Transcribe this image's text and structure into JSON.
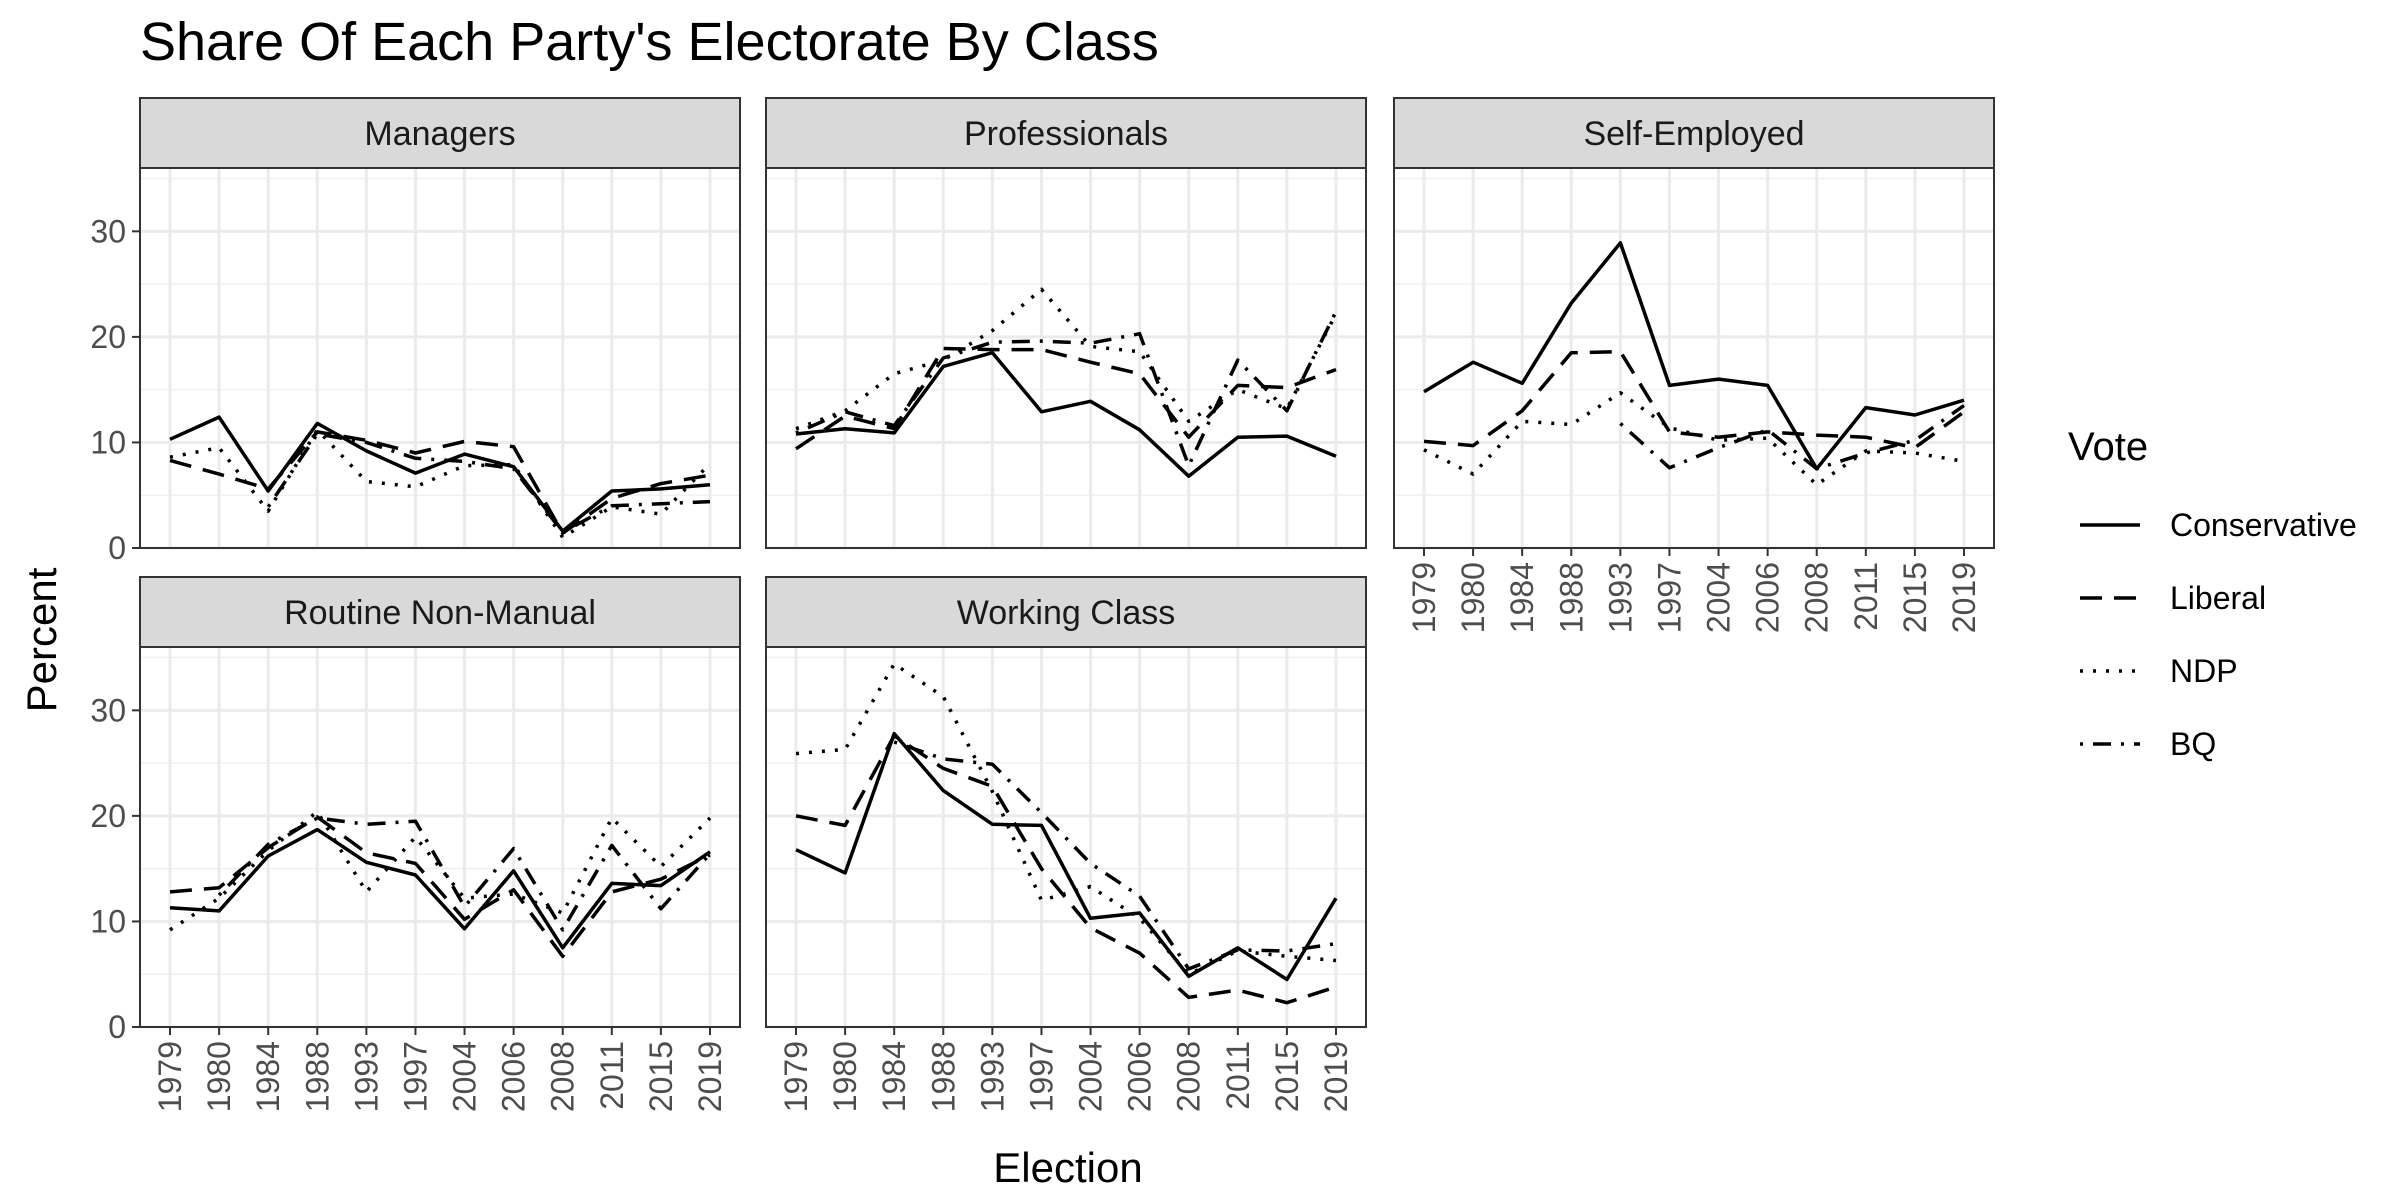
{
  "chart_data": {
    "type": "line",
    "title": "Share Of Each Party's Electorate By Class",
    "xlabel": "Election",
    "ylabel": "Percent",
    "ylim": [
      0,
      36
    ],
    "yticks": [
      0,
      10,
      20,
      30
    ],
    "grid": true,
    "legend_position": "right",
    "legend_title": "Vote",
    "x": [
      "1979",
      "1980",
      "1984",
      "1988",
      "1993",
      "1997",
      "2004",
      "2006",
      "2008",
      "2011",
      "2015",
      "2019"
    ],
    "series_styles": [
      {
        "name": "Conservative",
        "dash": "solid"
      },
      {
        "name": "Liberal",
        "dash": "dashed"
      },
      {
        "name": "NDP",
        "dash": "dotted"
      },
      {
        "name": "BQ",
        "dash": "dotdash"
      }
    ],
    "panels": [
      {
        "strip": "Managers",
        "series": [
          {
            "name": "Conservative",
            "values": [
              10.3,
              12.4,
              5.4,
              11.8,
              9.2,
              7.1,
              8.9,
              7.7,
              1.6,
              5.4,
              5.6,
              6.0
            ]
          },
          {
            "name": "Liberal",
            "values": [
              8.3,
              7.0,
              5.6,
              11.0,
              10.2,
              9.0,
              10.1,
              9.6,
              1.4,
              4.7,
              6.1,
              6.9
            ]
          },
          {
            "name": "NDP",
            "values": [
              8.6,
              9.5,
              3.5,
              11.2,
              6.3,
              5.8,
              7.8,
              7.9,
              1.0,
              3.9,
              3.2,
              8.0
            ]
          },
          {
            "name": "BQ",
            "values": [
              8.4,
              null,
              3.9,
              10.8,
              10.0,
              8.5,
              8.2,
              7.5,
              1.5,
              4.0,
              4.2,
              4.4
            ]
          }
        ]
      },
      {
        "strip": "Professionals",
        "series": [
          {
            "name": "Conservative",
            "values": [
              10.8,
              11.3,
              10.9,
              17.2,
              18.5,
              12.9,
              13.9,
              11.2,
              6.8,
              10.5,
              10.6,
              8.7
            ]
          },
          {
            "name": "Liberal",
            "values": [
              9.4,
              12.5,
              11.3,
              18.9,
              18.8,
              18.8,
              17.6,
              16.5,
              10.5,
              15.4,
              15.2,
              16.9
            ]
          },
          {
            "name": "NDP",
            "values": [
              11.3,
              13.0,
              16.5,
              17.8,
              20.6,
              24.5,
              19.1,
              18.6,
              12.0,
              15.0,
              13.2,
              22.2
            ]
          },
          {
            "name": "BQ",
            "values": [
              10.9,
              12.9,
              11.6,
              18.0,
              19.5,
              19.6,
              19.4,
              20.3,
              7.8,
              17.8,
              13.0,
              22.4
            ]
          }
        ]
      },
      {
        "strip": "Self-Employed",
        "series": [
          {
            "name": "Conservative",
            "values": [
              14.8,
              17.6,
              15.6,
              23.2,
              28.9,
              15.4,
              16.0,
              15.4,
              7.5,
              13.3,
              12.6,
              14.0
            ]
          },
          {
            "name": "Liberal",
            "values": [
              10.1,
              9.7,
              13.0,
              18.5,
              18.6,
              11.0,
              10.5,
              11.0,
              10.7,
              10.5,
              9.5,
              12.9
            ]
          },
          {
            "name": "NDP",
            "values": [
              9.3,
              7.0,
              12.0,
              11.7,
              14.7,
              11.4,
              10.2,
              10.4,
              6.0,
              9.2,
              9.0,
              8.2
            ]
          },
          {
            "name": "BQ",
            "values": [
              9.5,
              null,
              12.7,
              null,
              11.8,
              7.6,
              9.5,
              11.2,
              7.5,
              9.0,
              10.2,
              13.5
            ]
          }
        ]
      },
      {
        "strip": "Routine Non-Manual",
        "series": [
          {
            "name": "Conservative",
            "values": [
              11.3,
              11.0,
              16.2,
              18.7,
              15.6,
              14.4,
              9.3,
              14.8,
              7.5,
              13.6,
              13.4,
              16.6
            ]
          },
          {
            "name": "Liberal",
            "values": [
              12.8,
              13.2,
              17.0,
              19.9,
              16.5,
              15.5,
              10.2,
              13.0,
              6.7,
              12.8,
              14.0,
              16.3
            ]
          },
          {
            "name": "NDP",
            "values": [
              9.2,
              12.2,
              16.7,
              20.4,
              12.8,
              18.0,
              12.2,
              12.6,
              10.8,
              19.8,
              15.2,
              19.8
            ]
          },
          {
            "name": "BQ",
            "values": [
              null,
              12.5,
              17.3,
              19.8,
              19.2,
              19.5,
              11.4,
              16.9,
              9.2,
              17.2,
              11.2,
              16.4
            ]
          }
        ]
      },
      {
        "strip": "Working Class",
        "series": [
          {
            "name": "Conservative",
            "values": [
              16.8,
              14.6,
              27.8,
              22.4,
              19.2,
              19.1,
              10.3,
              10.8,
              4.8,
              7.5,
              4.5,
              12.2
            ]
          },
          {
            "name": "Liberal",
            "values": [
              20.0,
              19.1,
              27.6,
              24.5,
              22.8,
              15.0,
              9.4,
              7.0,
              2.8,
              3.5,
              2.3,
              3.8
            ]
          },
          {
            "name": "NDP",
            "values": [
              25.9,
              26.3,
              34.4,
              31.3,
              22.3,
              12.0,
              13.3,
              10.3,
              5.0,
              7.2,
              6.7,
              6.3
            ]
          },
          {
            "name": "BQ",
            "values": [
              null,
              null,
              27.0,
              25.4,
              24.9,
              20.3,
              15.5,
              12.4,
              5.5,
              7.3,
              7.2,
              7.9
            ]
          }
        ]
      }
    ]
  }
}
